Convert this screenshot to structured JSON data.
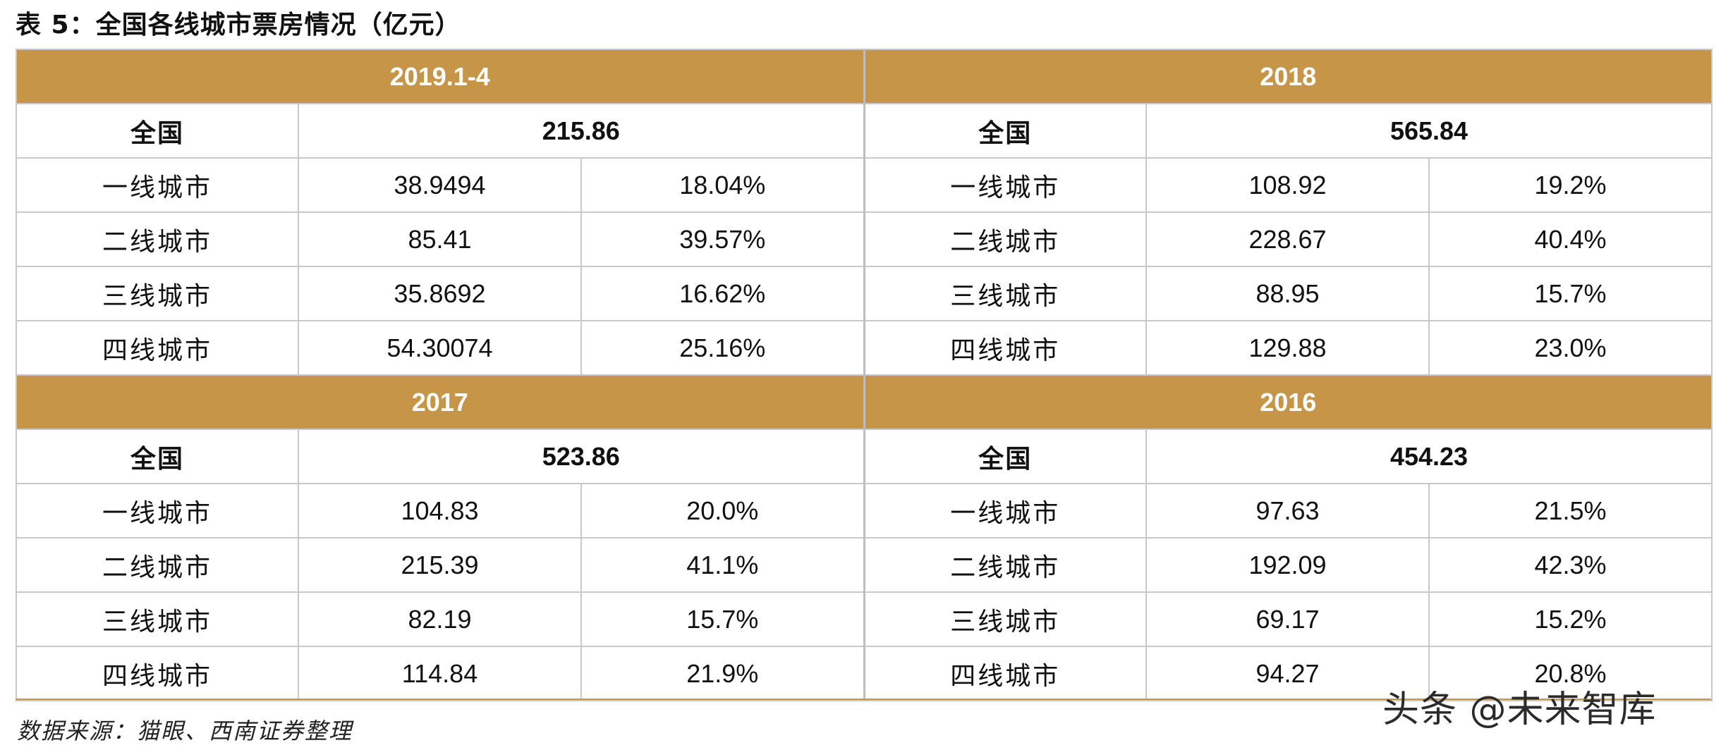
{
  "title": "表 5：全国各线城市票房情况（亿元）",
  "blocks": [
    {
      "year": "2019.1-4",
      "total_label": "全国",
      "total_value": "215.86",
      "rows": [
        {
          "city": "一线城市",
          "value": "38.9494",
          "share": "18.04%"
        },
        {
          "city": "二线城市",
          "value": "85.41",
          "share": "39.57%"
        },
        {
          "city": "三线城市",
          "value": "35.8692",
          "share": "16.62%"
        },
        {
          "city": "四线城市",
          "value": "54.30074",
          "share": "25.16%"
        }
      ]
    },
    {
      "year": "2018",
      "total_label": "全国",
      "total_value": "565.84",
      "rows": [
        {
          "city": "一线城市",
          "value": "108.92",
          "share": "19.2%"
        },
        {
          "city": "二线城市",
          "value": "228.67",
          "share": "40.4%"
        },
        {
          "city": "三线城市",
          "value": "88.95",
          "share": "15.7%"
        },
        {
          "city": "四线城市",
          "value": "129.88",
          "share": "23.0%"
        }
      ]
    },
    {
      "year": "2017",
      "total_label": "全国",
      "total_value": "523.86",
      "rows": [
        {
          "city": "一线城市",
          "value": "104.83",
          "share": "20.0%"
        },
        {
          "city": "二线城市",
          "value": "215.39",
          "share": "41.1%"
        },
        {
          "city": "三线城市",
          "value": "82.19",
          "share": "15.7%"
        },
        {
          "city": "四线城市",
          "value": "114.84",
          "share": "21.9%"
        }
      ]
    },
    {
      "year": "2016",
      "total_label": "全国",
      "total_value": "454.23",
      "rows": [
        {
          "city": "一线城市",
          "value": "97.63",
          "share": "21.5%"
        },
        {
          "city": "二线城市",
          "value": "192.09",
          "share": "42.3%"
        },
        {
          "city": "三线城市",
          "value": "69.17",
          "share": "15.2%"
        },
        {
          "city": "四线城市",
          "value": "94.27",
          "share": "20.8%"
        }
      ]
    }
  ],
  "source": "数据来源：猫眼、西南证券整理",
  "watermark": "头条 @未来智库",
  "colors": {
    "header_bg": "#c79547",
    "header_text": "#ffffff",
    "grid_line": "#c9c9c9"
  }
}
